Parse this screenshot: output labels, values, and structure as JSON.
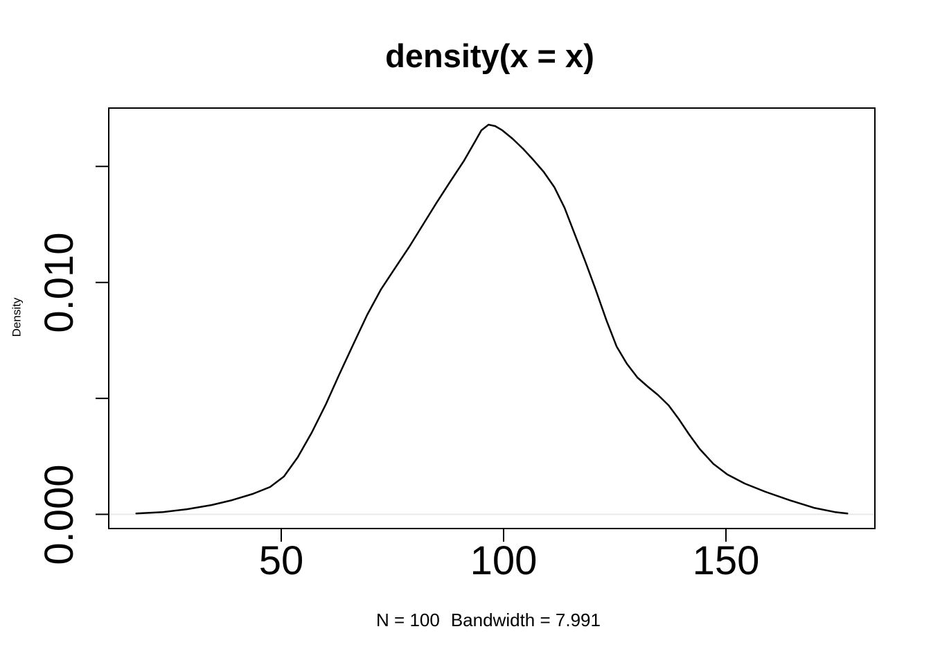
{
  "title": "density(x = x)",
  "y_axis_title": "Density",
  "caption": {
    "n_label": "N = 100",
    "bandwidth_label": "Bandwidth = 7.991"
  },
  "colors": {
    "curve": "#000000",
    "frame": "#000000",
    "tick": "#000000",
    "text": "#000000",
    "zero_baseline": "#e8e8e8",
    "background": "#ffffff"
  },
  "axes": {
    "x": {
      "ticks": [
        {
          "value": 50,
          "label": "50"
        },
        {
          "value": 100,
          "label": "100"
        },
        {
          "value": 150,
          "label": "150"
        }
      ]
    },
    "y": {
      "ticks": [
        {
          "value": 0,
          "label": "0.000"
        },
        {
          "value": 0.005,
          "label": ""
        },
        {
          "value": 0.01,
          "label": "0.010"
        },
        {
          "value": 0.015,
          "label": ""
        }
      ]
    }
  },
  "chart_data": {
    "type": "line",
    "title": "density(x = x)",
    "xlabel": "N = 100   Bandwidth = 7.991",
    "ylabel": "Density",
    "n": 100,
    "bandwidth": 7.991,
    "xlim": [
      11.2,
      183.5
    ],
    "ylim": [
      -0.0006,
      0.0175
    ],
    "x_tick_values": [
      50,
      100,
      150
    ],
    "y_tick_values": [
      0,
      0.005,
      0.01,
      0.015
    ],
    "grid": false,
    "legend": "none",
    "x": [
      17.4,
      23.4,
      28.8,
      34.3,
      38.9,
      43.6,
      47.5,
      50.6,
      53.7,
      56.9,
      60.0,
      63.1,
      66.2,
      69.3,
      72.4,
      75.5,
      78.7,
      81.8,
      84.9,
      88.0,
      91.1,
      93.5,
      95.0,
      96.6,
      98.1,
      99.7,
      102.0,
      104.4,
      106.7,
      109.0,
      111.4,
      113.7,
      116.0,
      118.4,
      120.7,
      123.1,
      125.4,
      127.7,
      130.1,
      132.4,
      134.7,
      137.1,
      139.4,
      141.7,
      144.1,
      147.2,
      150.3,
      154.2,
      158.9,
      164.3,
      169.8,
      174.5,
      177.3
    ],
    "y": [
      4e-05,
      0.0001,
      0.00022,
      0.0004,
      0.00061,
      0.00088,
      0.00118,
      0.00163,
      0.00246,
      0.00354,
      0.00473,
      0.00605,
      0.00733,
      0.00859,
      0.00969,
      0.01059,
      0.01151,
      0.01247,
      0.01343,
      0.01435,
      0.01525,
      0.01605,
      0.01656,
      0.0168,
      0.01674,
      0.01656,
      0.0162,
      0.01576,
      0.01528,
      0.01477,
      0.01411,
      0.01322,
      0.01208,
      0.01089,
      0.00969,
      0.00838,
      0.00724,
      0.0065,
      0.0059,
      0.00551,
      0.00515,
      0.0047,
      0.00411,
      0.00345,
      0.00282,
      0.00217,
      0.00172,
      0.00133,
      0.00097,
      0.00061,
      0.00028,
      0.0001,
      4e-05
    ]
  }
}
